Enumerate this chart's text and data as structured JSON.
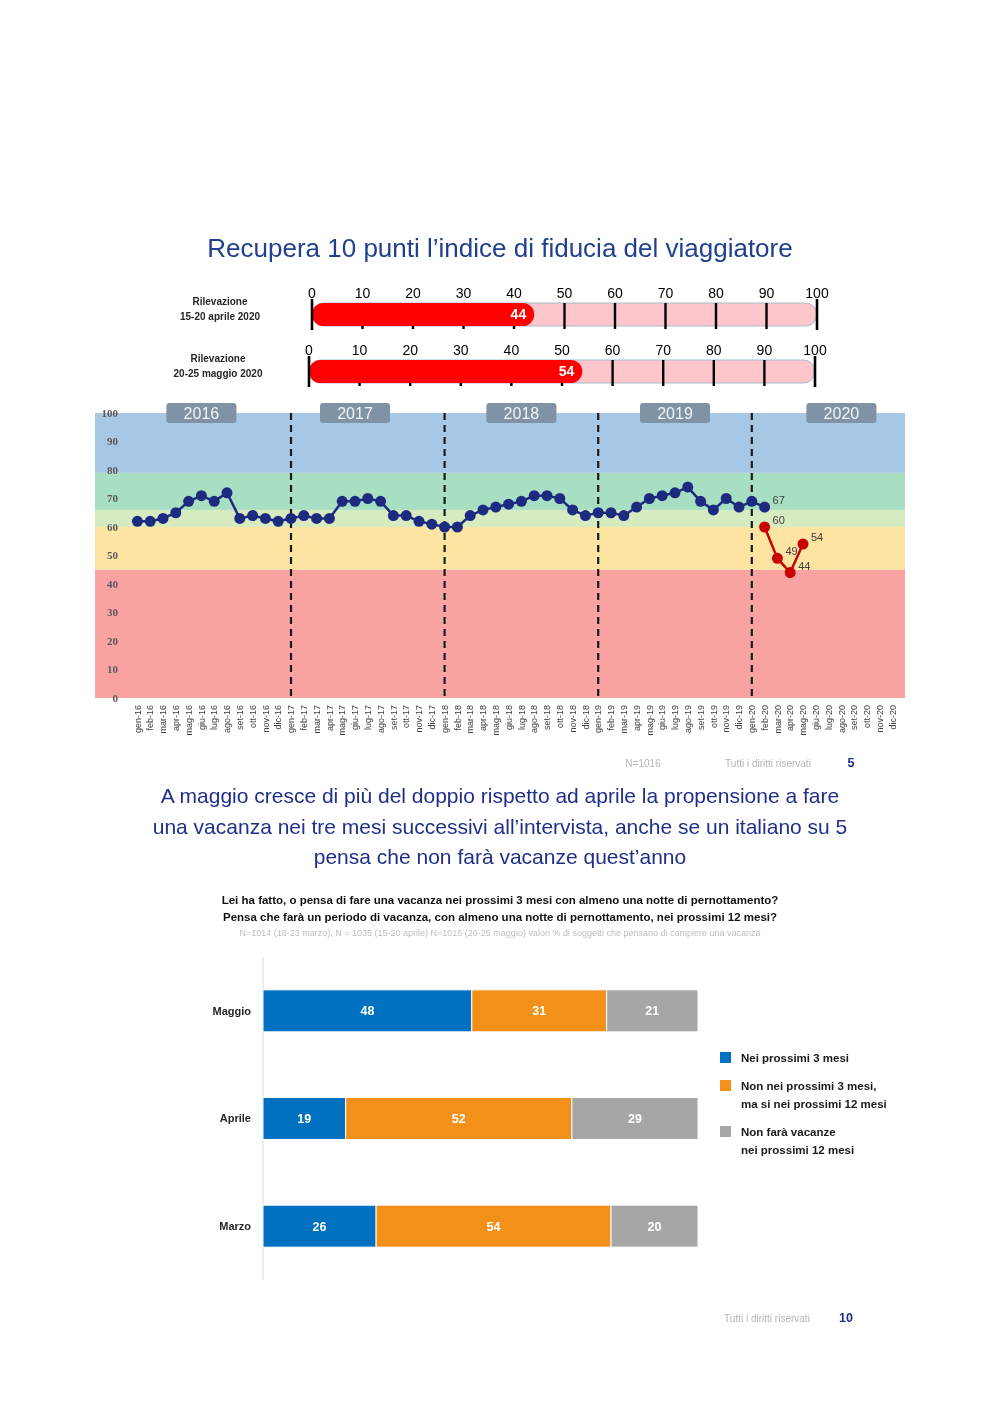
{
  "chart_data": [
    {
      "type": "bar",
      "orientation": "horizontal",
      "title": "Recupera 10 punti l’indice di fiducia del viaggiatore",
      "categories": [
        "Rilevazione\n15-20 aprile 2020"
      ],
      "values": [
        44
      ],
      "color": "#ff0000",
      "xlim": [
        0,
        100
      ],
      "xticks": [
        0,
        10,
        20,
        30,
        40,
        50,
        60,
        70,
        80,
        90,
        100
      ],
      "bands": [
        {
          "axis": "x",
          "from": 0,
          "to": 100,
          "color": "#fcc6ca"
        }
      ],
      "data_labels": true
    },
    {
      "type": "bar",
      "orientation": "horizontal",
      "categories": [
        "Rilevazione\n20-25 maggio 2020"
      ],
      "values": [
        54
      ],
      "color": "#ff0000",
      "xlim": [
        0,
        100
      ],
      "xticks": [
        0,
        10,
        20,
        30,
        40,
        50,
        60,
        70,
        80,
        90,
        100
      ],
      "bands": [
        {
          "axis": "x",
          "from": 0,
          "to": 100,
          "color": "#fcc6ca"
        }
      ],
      "data_labels": true
    },
    {
      "type": "line",
      "categories": [
        "gen-16",
        "feb-16",
        "mar-16",
        "apr-16",
        "mag-16",
        "giu-16",
        "lug-16",
        "ago-16",
        "set-16",
        "ott-16",
        "nov-16",
        "dic-16",
        "gen-17",
        "feb-17",
        "mar-17",
        "apr-17",
        "mag-17",
        "giu-17",
        "lug-17",
        "ago-17",
        "set-17",
        "ott-17",
        "nov-17",
        "dic-17",
        "gen-18",
        "feb-18",
        "mar-18",
        "apr-18",
        "mag-18",
        "giu-18",
        "lug-18",
        "ago-18",
        "set-18",
        "ott-18",
        "nov-18",
        "dic-18",
        "gen-19",
        "feb-19",
        "mar-19",
        "apr-19",
        "mag-19",
        "giu-19",
        "lug-19",
        "ago-19",
        "set-19",
        "ott-19",
        "nov-19",
        "dic-19",
        "gen-20",
        "feb-20",
        "mar-20",
        "apr-20",
        "mag-20",
        "giu-20",
        "lug-20",
        "ago-20",
        "set-20",
        "ott-20",
        "nov-20",
        "dic-20"
      ],
      "series": [
        {
          "color": "#1c2b7f",
          "values": [
            62,
            62,
            63,
            65,
            69,
            71,
            69,
            72,
            63,
            64,
            63,
            62,
            63,
            64,
            63,
            63,
            69,
            69,
            70,
            69,
            64,
            64,
            62,
            61,
            60,
            60,
            64,
            66,
            67,
            68,
            69,
            71,
            71,
            70,
            66,
            64,
            65,
            65,
            64,
            67,
            70,
            71,
            72,
            74,
            69,
            66,
            70,
            67,
            69,
            67,
            null,
            null,
            null,
            null,
            null,
            null,
            null,
            null,
            null,
            null
          ],
          "value_labels": [
            null,
            null,
            null,
            null,
            null,
            null,
            null,
            null,
            null,
            null,
            null,
            null,
            null,
            null,
            null,
            null,
            null,
            null,
            null,
            null,
            null,
            null,
            null,
            null,
            null,
            null,
            null,
            null,
            null,
            null,
            null,
            null,
            null,
            null,
            null,
            null,
            null,
            null,
            null,
            null,
            null,
            null,
            null,
            null,
            null,
            null,
            null,
            null,
            null,
            "67",
            null,
            null,
            null,
            null,
            null,
            null,
            null,
            null,
            null,
            null
          ]
        },
        {
          "color": "#c80000",
          "values": [
            null,
            null,
            null,
            null,
            null,
            null,
            null,
            null,
            null,
            null,
            null,
            null,
            null,
            null,
            null,
            null,
            null,
            null,
            null,
            null,
            null,
            null,
            null,
            null,
            null,
            null,
            null,
            null,
            null,
            null,
            null,
            null,
            null,
            null,
            null,
            null,
            null,
            null,
            null,
            null,
            null,
            null,
            null,
            null,
            null,
            null,
            null,
            null,
            null,
            60,
            49,
            44,
            54,
            null,
            null,
            null,
            null,
            null,
            null,
            null
          ],
          "value_labels": [
            null,
            null,
            null,
            null,
            null,
            null,
            null,
            null,
            null,
            null,
            null,
            null,
            null,
            null,
            null,
            null,
            null,
            null,
            null,
            null,
            null,
            null,
            null,
            null,
            null,
            null,
            null,
            null,
            null,
            null,
            null,
            null,
            null,
            null,
            null,
            null,
            null,
            null,
            null,
            null,
            null,
            null,
            null,
            null,
            null,
            null,
            null,
            null,
            null,
            "60",
            "49",
            "44",
            "54",
            null,
            null,
            null,
            null,
            null,
            null,
            null
          ]
        }
      ],
      "ylim": [
        0,
        100
      ],
      "yticks": [
        0,
        10,
        20,
        30,
        40,
        50,
        60,
        70,
        80,
        90,
        100
      ],
      "marker": "circle",
      "line_style": "solid",
      "bands": [
        {
          "axis": "y",
          "from": 0,
          "to": 45,
          "color": "#f9a2a2"
        },
        {
          "axis": "y",
          "from": 45,
          "to": 60,
          "color": "#fde4a2"
        },
        {
          "axis": "y",
          "from": 60,
          "to": 66,
          "color": "#d6ebbf"
        },
        {
          "axis": "y",
          "from": 66,
          "to": 79,
          "color": "#a8dec1"
        },
        {
          "axis": "y",
          "from": 79,
          "to": 100,
          "color": "#a7c8e5"
        }
      ],
      "ref_lines": [
        {
          "axis": "x",
          "value": "gen-17",
          "line_style": "dashed",
          "color": "#1a1a1a"
        },
        {
          "axis": "x",
          "value": "gen-18",
          "line_style": "dashed",
          "color": "#1a1a1a"
        },
        {
          "axis": "x",
          "value": "gen-19",
          "line_style": "dashed",
          "color": "#1a1a1a"
        },
        {
          "axis": "x",
          "value": "gen-20",
          "line_style": "dashed",
          "color": "#1a1a1a"
        }
      ],
      "annotations": [
        {
          "text": "2016",
          "x": "giu-16",
          "y": 100
        },
        {
          "text": "2017",
          "x": "giu-17",
          "y": 100
        },
        {
          "text": "2018",
          "x": "lug-18",
          "y": 100
        },
        {
          "text": "2019",
          "x": "lug-19",
          "y": 100
        },
        {
          "text": "2020",
          "x": "ago-20",
          "y": 100
        },
        "N=1016",
        "Tutti i diritti riservati",
        "5"
      ]
    },
    {
      "type": "bar",
      "orientation": "horizontal",
      "stacked": true,
      "title": "A maggio cresce di più del doppio rispetto ad aprile la propensione a fare\nuna vacanza nei tre mesi successivi all’intervista, anche se un italiano su 5\npensa che non farà vacanze quest’anno",
      "subtitle": "Lei ha fatto, o pensa di fare una vacanza nei prossimi 3 mesi con almeno una notte di pernottamento?\nPensa che farà un periodo di vacanza, con almeno una notte di pernottamento, nei prossimi 12 mesi?",
      "categories": [
        "Maggio",
        "Aprile",
        "Marzo"
      ],
      "series": [
        {
          "name": "Nei prossimi 3 mesi",
          "color": "#0070c0",
          "values": [
            48,
            19,
            26
          ]
        },
        {
          "name": "Non nei prossimi 3 mesi,\nma si nei prossimi 12 mesi",
          "color": "#f39019",
          "values": [
            31,
            52,
            54
          ]
        },
        {
          "name": "Non farà vacanze\nnei prossimi 12 mesi",
          "color": "#a6a6a6",
          "values": [
            21,
            29,
            20
          ]
        }
      ],
      "data_labels": true,
      "legend": "right",
      "annotations": [
        "N=1014 (18-23 marzo), N = 1035 (15-20 aprile) N=1016 (20-25 maggio) valori % di soggetti che pensano di compiere una vacanza",
        "Tutti i diritti riservati",
        "10"
      ]
    }
  ]
}
